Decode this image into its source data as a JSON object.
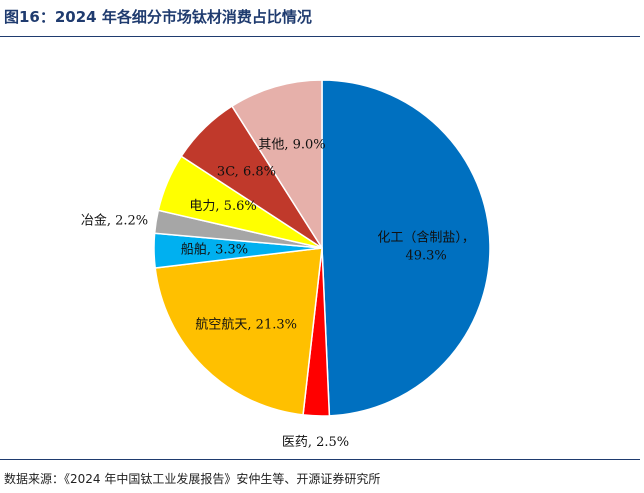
{
  "figure": {
    "title": "图16：2024 年各细分市场钛材消费占比情况",
    "source": "数据来源：《2024 年中国钛工业发展报告》安仲生等、开源证券研究所"
  },
  "chart_data": {
    "type": "pie",
    "title": "",
    "slices": [
      {
        "label": "化工（含制盐）",
        "value": 49.3,
        "text": "化工（含制盐），49.3%",
        "color": "#0070c0"
      },
      {
        "label": "医药",
        "value": 2.5,
        "text": "医药, 2.5%",
        "color": "#ff0000"
      },
      {
        "label": "航空航天",
        "value": 21.3,
        "text": "航空航天, 21.3%",
        "color": "#ffc000"
      },
      {
        "label": "船舶",
        "value": 3.3,
        "text": "船舶, 3.3%",
        "color": "#00b0f0"
      },
      {
        "label": "冶金",
        "value": 2.2,
        "text": "冶金, 2.2%",
        "color": "#a6a6a6"
      },
      {
        "label": "电力",
        "value": 5.6,
        "text": "电力, 5.6%",
        "color": "#ffff00"
      },
      {
        "label": "3C",
        "value": 6.8,
        "text": "3C, 6.8%",
        "color": "#c0392b"
      },
      {
        "label": "其他",
        "value": 9.0,
        "text": "其他, 9.0%",
        "color": "#e6b0aa"
      }
    ]
  }
}
